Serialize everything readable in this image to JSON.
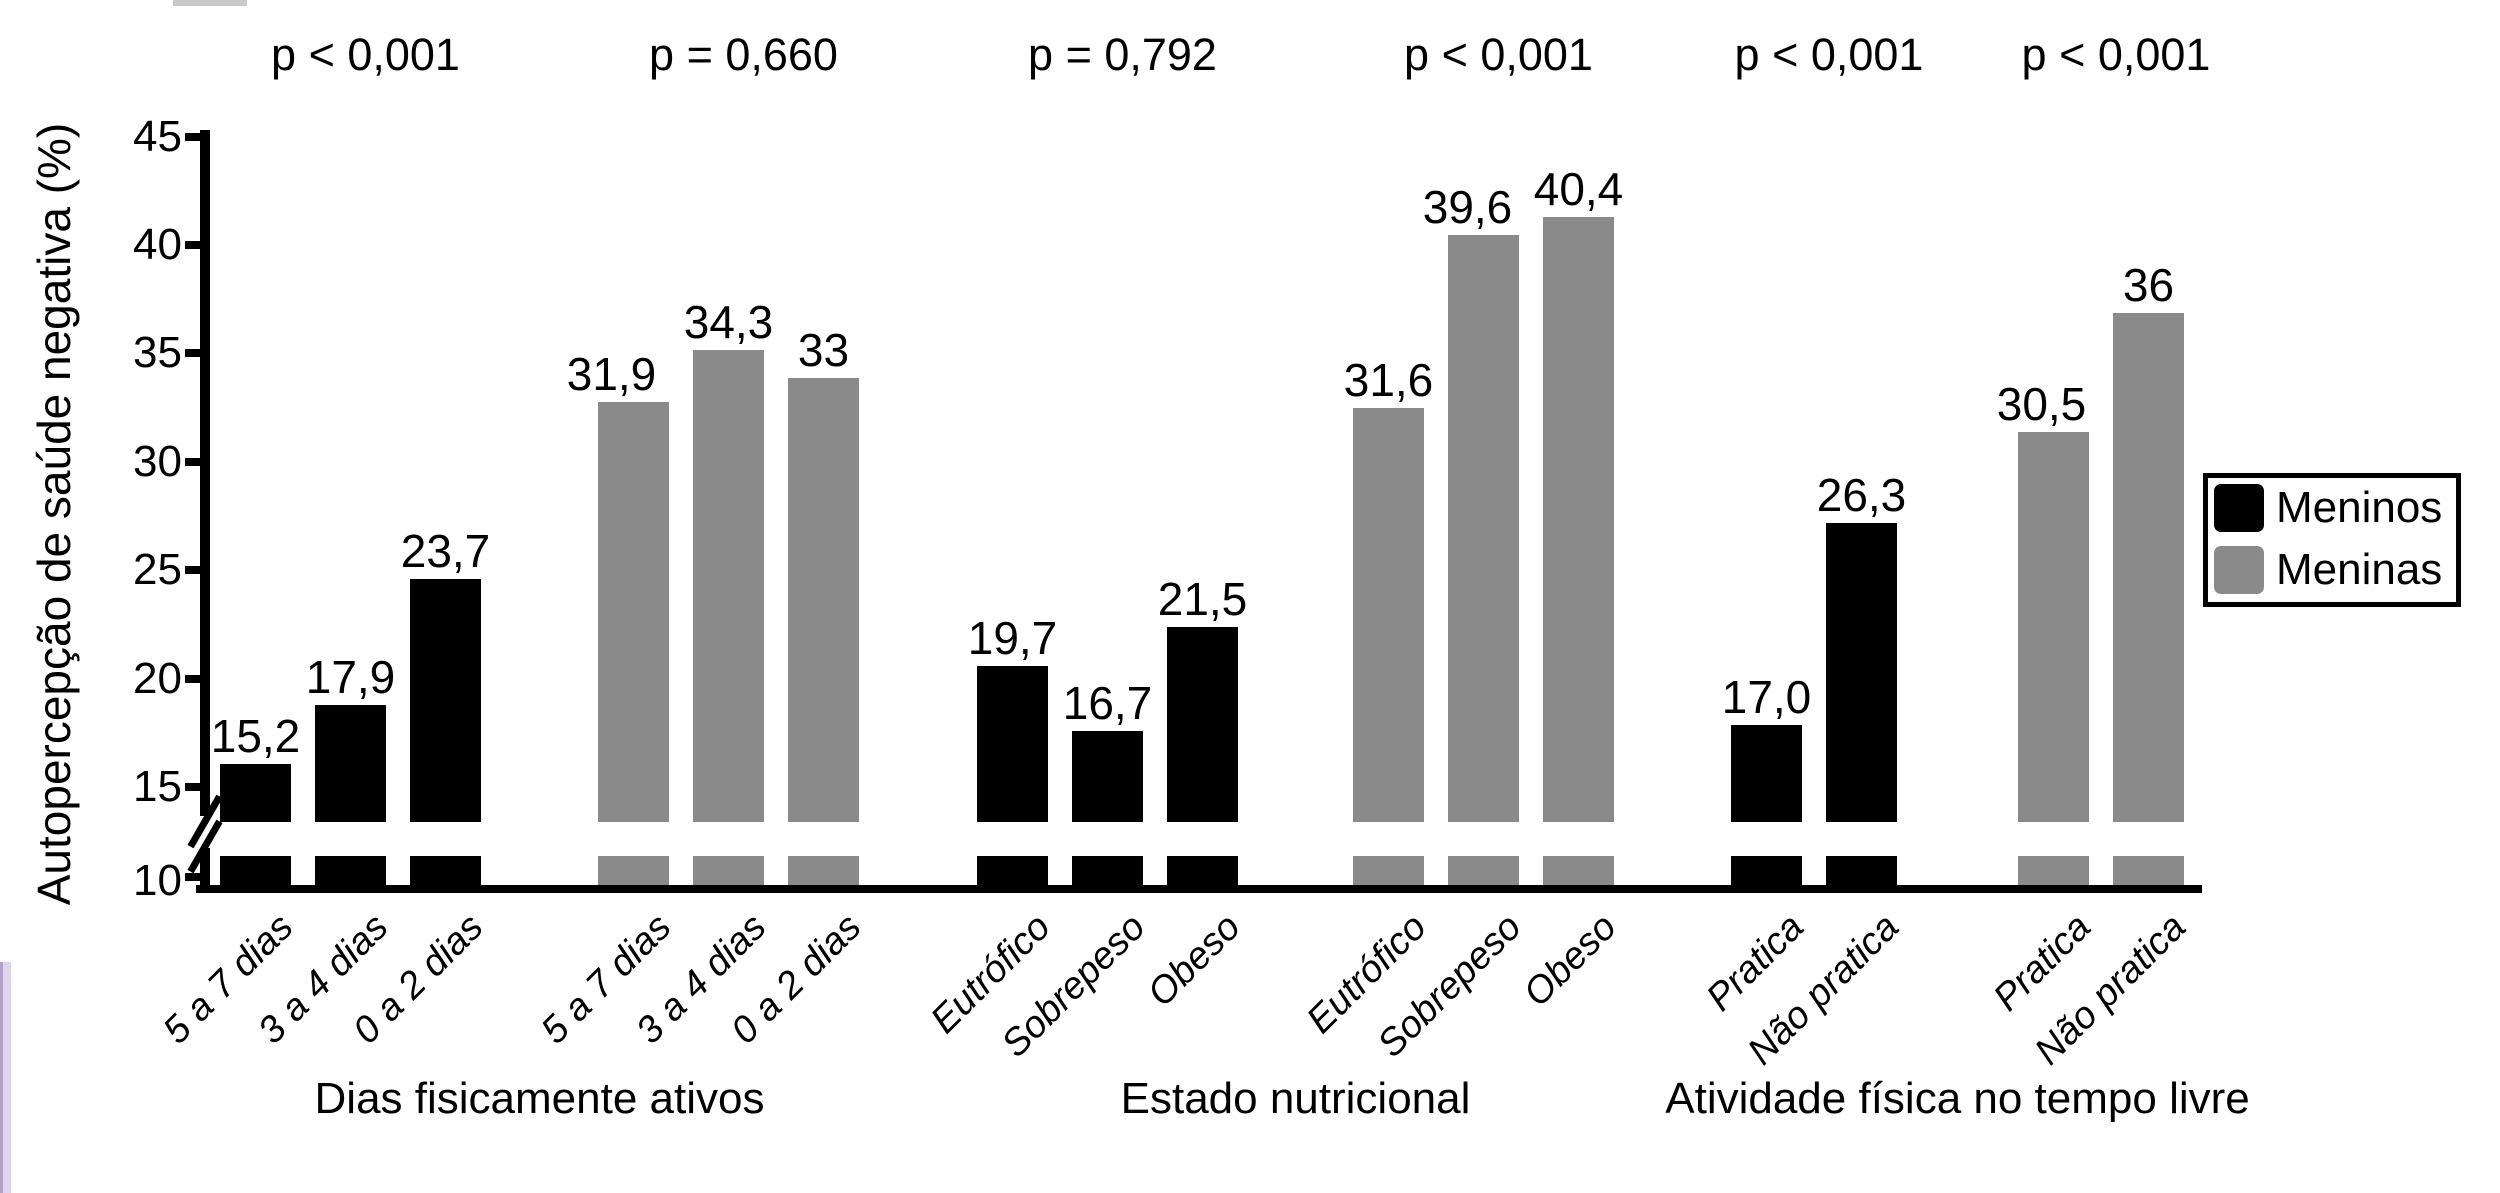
{
  "y_axis": {
    "title": "Autopercepção de saúde negativa (%)",
    "tick_labels": [
      "10",
      "15",
      "20",
      "25",
      "30",
      "35",
      "40",
      "45"
    ],
    "linear_ticks": [
      15,
      20,
      25,
      30,
      35,
      40,
      45
    ],
    "break_tick": "10"
  },
  "legend": {
    "items": [
      {
        "label": "Meninos",
        "color": "#000000"
      },
      {
        "label": "Meninas",
        "color": "#8a8a8a"
      }
    ]
  },
  "colors": {
    "boys": "#000000",
    "girls": "#8a8a8a"
  },
  "chart_data": {
    "type": "bar",
    "ylabel": "Autopercepção de saúde negativa (%)",
    "ylim": [
      10,
      45
    ],
    "axis_break_between": [
      10,
      15
    ],
    "grid": false,
    "legend_position": "right",
    "groups": [
      {
        "label": "Dias fisicamente ativos",
        "subgroups": [
          {
            "series": "Meninos",
            "color": "#000000",
            "p_value": "p < 0,001",
            "bars": [
              {
                "category": "5 a 7 dias",
                "value": 15.2,
                "label": "15,2"
              },
              {
                "category": "3 a 4 dias",
                "value": 17.9,
                "label": "17,9"
              },
              {
                "category": "0 a 2 dias",
                "value": 23.7,
                "label": "23,7"
              }
            ]
          },
          {
            "series": "Meninas",
            "color": "#8a8a8a",
            "p_value": "p = 0,660",
            "bars": [
              {
                "category": "5 a 7 dias",
                "value": 31.9,
                "label": "31,9"
              },
              {
                "category": "3 a 4 dias",
                "value": 34.3,
                "label": "34,3"
              },
              {
                "category": "0 a 2 dias",
                "value": 33,
                "label": "33"
              }
            ]
          }
        ]
      },
      {
        "label": "Estado nutricional",
        "subgroups": [
          {
            "series": "Meninos",
            "color": "#000000",
            "p_value": "p = 0,792",
            "bars": [
              {
                "category": "Eutrófico",
                "value": 19.7,
                "label": "19,7"
              },
              {
                "category": "Sobrepeso",
                "value": 16.7,
                "label": "16,7"
              },
              {
                "category": "Obeso",
                "value": 21.5,
                "label": "21,5"
              }
            ]
          },
          {
            "series": "Meninas",
            "color": "#8a8a8a",
            "p_value": "p < 0,001",
            "bars": [
              {
                "category": "Eutrófico",
                "value": 31.6,
                "label": "31,6"
              },
              {
                "category": "Sobrepeso",
                "value": 39.6,
                "label": "39,6"
              },
              {
                "category": "Obeso",
                "value": 40.4,
                "label": "40,4"
              }
            ]
          }
        ]
      },
      {
        "label": "Atividade física no tempo livre",
        "subgroups": [
          {
            "series": "Meninos",
            "color": "#000000",
            "p_value": "p < 0,001",
            "bars": [
              {
                "category": "Pratica",
                "value": 17.0,
                "label": "17,0"
              },
              {
                "category": "Não pratica",
                "value": 26.3,
                "label": "26,3"
              }
            ]
          },
          {
            "series": "Meninas",
            "color": "#8a8a8a",
            "p_value": "p < 0,001",
            "bars": [
              {
                "category": "Pratica",
                "value": 30.5,
                "label": "30,5"
              },
              {
                "category": "Não pratica",
                "value": 36,
                "label": "36"
              }
            ]
          }
        ]
      }
    ]
  }
}
